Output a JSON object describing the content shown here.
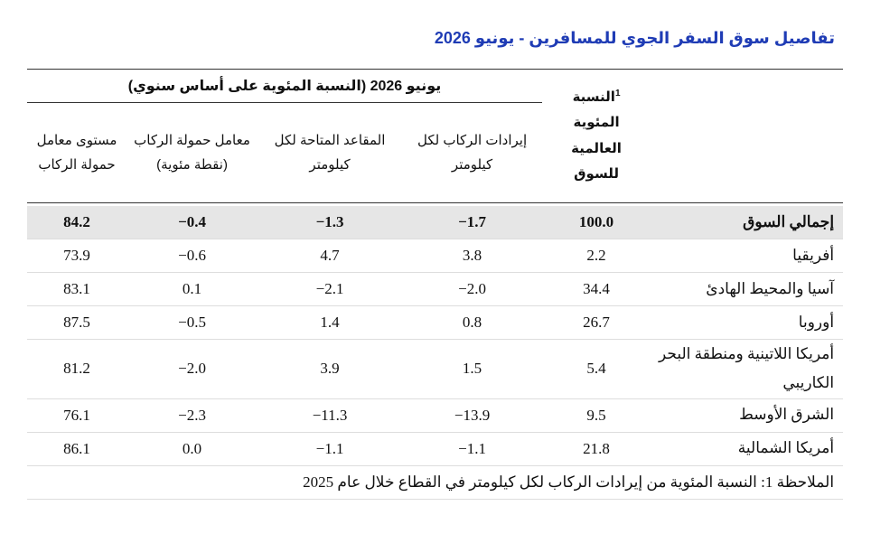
{
  "title": "تفاصيل سوق السفر الجوي للمسافرين - يونيو 2026",
  "table": {
    "group_header": "يونيو 2026 (النسبة المئوية على أساس سنوي)",
    "share_header": "النسبة المئوية العالمية للسوق",
    "share_note_mark": "1",
    "columns": [
      "إيرادات الركاب لكل كيلومتر",
      "المقاعد المتاحة لكل كيلومتر",
      "معامل حمولة الركاب (نقطة مئوية)",
      "مستوى معامل حمولة الركاب"
    ],
    "rows": [
      [
        "إجمالي السوق",
        "100.0",
        "−1.7",
        "−1.3",
        "−0.4",
        "84.2"
      ],
      [
        "أفريقيا",
        "2.2",
        "3.8",
        "4.7",
        "−0.6",
        "73.9"
      ],
      [
        "آسيا والمحيط الهادئ",
        "34.4",
        "−2.0",
        "−2.1",
        "0.1",
        "83.1"
      ],
      [
        "أوروبا",
        "26.7",
        "0.8",
        "1.4",
        "−0.5",
        "87.5"
      ],
      [
        "أمريكا اللاتينية ومنطقة البحر الكاريبي",
        "5.4",
        "1.5",
        "3.9",
        "−2.0",
        "81.2"
      ],
      [
        "الشرق الأوسط",
        "9.5",
        "−13.9",
        "−11.3",
        "−2.3",
        "76.1"
      ],
      [
        "أمريكا الشمالية",
        "21.8",
        "−1.1",
        "−1.1",
        "0.0",
        "86.1"
      ]
    ]
  },
  "footnote": "الملاحظة 1: النسبة المئوية من إيرادات الركاب لكل كيلومتر في القطاع خلال عام 2025"
}
